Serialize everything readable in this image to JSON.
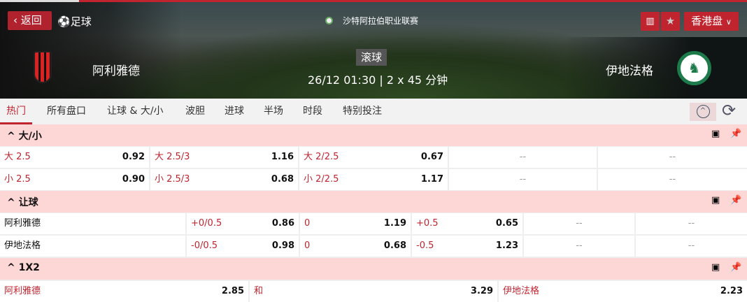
{
  "header": {
    "back_label": "返回",
    "sport_label": "足球",
    "league": "沙特阿拉伯职业联赛",
    "status": "滚球",
    "match_time": "26/12 01:30 | 2 x 45 分钟",
    "home_team": "阿利雅德",
    "away_team": "伊地法格",
    "odds_format": "香港盘",
    "accent_color": "#c0242f"
  },
  "tabs": [
    "热门",
    "所有盘口",
    "让球 & 大/小",
    "波胆",
    "进球",
    "半场",
    "时段",
    "特别投注"
  ],
  "active_tab": "热门",
  "over_under": {
    "title": "大/小",
    "rows": [
      [
        {
          "l": "大 2.5",
          "v": "0.92"
        },
        {
          "l": "大 2.5/3",
          "v": "1.16"
        },
        {
          "l": "大 2/2.5",
          "v": "0.67"
        },
        {
          "l": "--"
        },
        {
          "l": "--"
        }
      ],
      [
        {
          "l": "小 2.5",
          "v": "0.90"
        },
        {
          "l": "小 2.5/3",
          "v": "0.68"
        },
        {
          "l": "小 2/2.5",
          "v": "1.17"
        },
        {
          "l": "--"
        },
        {
          "l": "--"
        }
      ]
    ]
  },
  "handicap": {
    "title": "让球",
    "rows": [
      {
        "team": "阿利雅德",
        "cells": [
          {
            "l": "+0/0.5",
            "v": "0.86"
          },
          {
            "l": "0",
            "v": "1.19"
          },
          {
            "l": "+0.5",
            "v": "0.65"
          },
          {
            "l": "--"
          },
          {
            "l": "--"
          }
        ]
      },
      {
        "team": "伊地法格",
        "cells": [
          {
            "l": "-0/0.5",
            "v": "0.98"
          },
          {
            "l": "0",
            "v": "0.68"
          },
          {
            "l": "-0.5",
            "v": "1.23"
          },
          {
            "l": "--"
          },
          {
            "l": "--"
          }
        ]
      }
    ]
  },
  "x12": {
    "title": "1X2",
    "cells": [
      {
        "l": "阿利雅德",
        "v": "2.85"
      },
      {
        "l": "和",
        "v": "3.29"
      },
      {
        "l": "伊地法格",
        "v": "2.23"
      }
    ]
  }
}
